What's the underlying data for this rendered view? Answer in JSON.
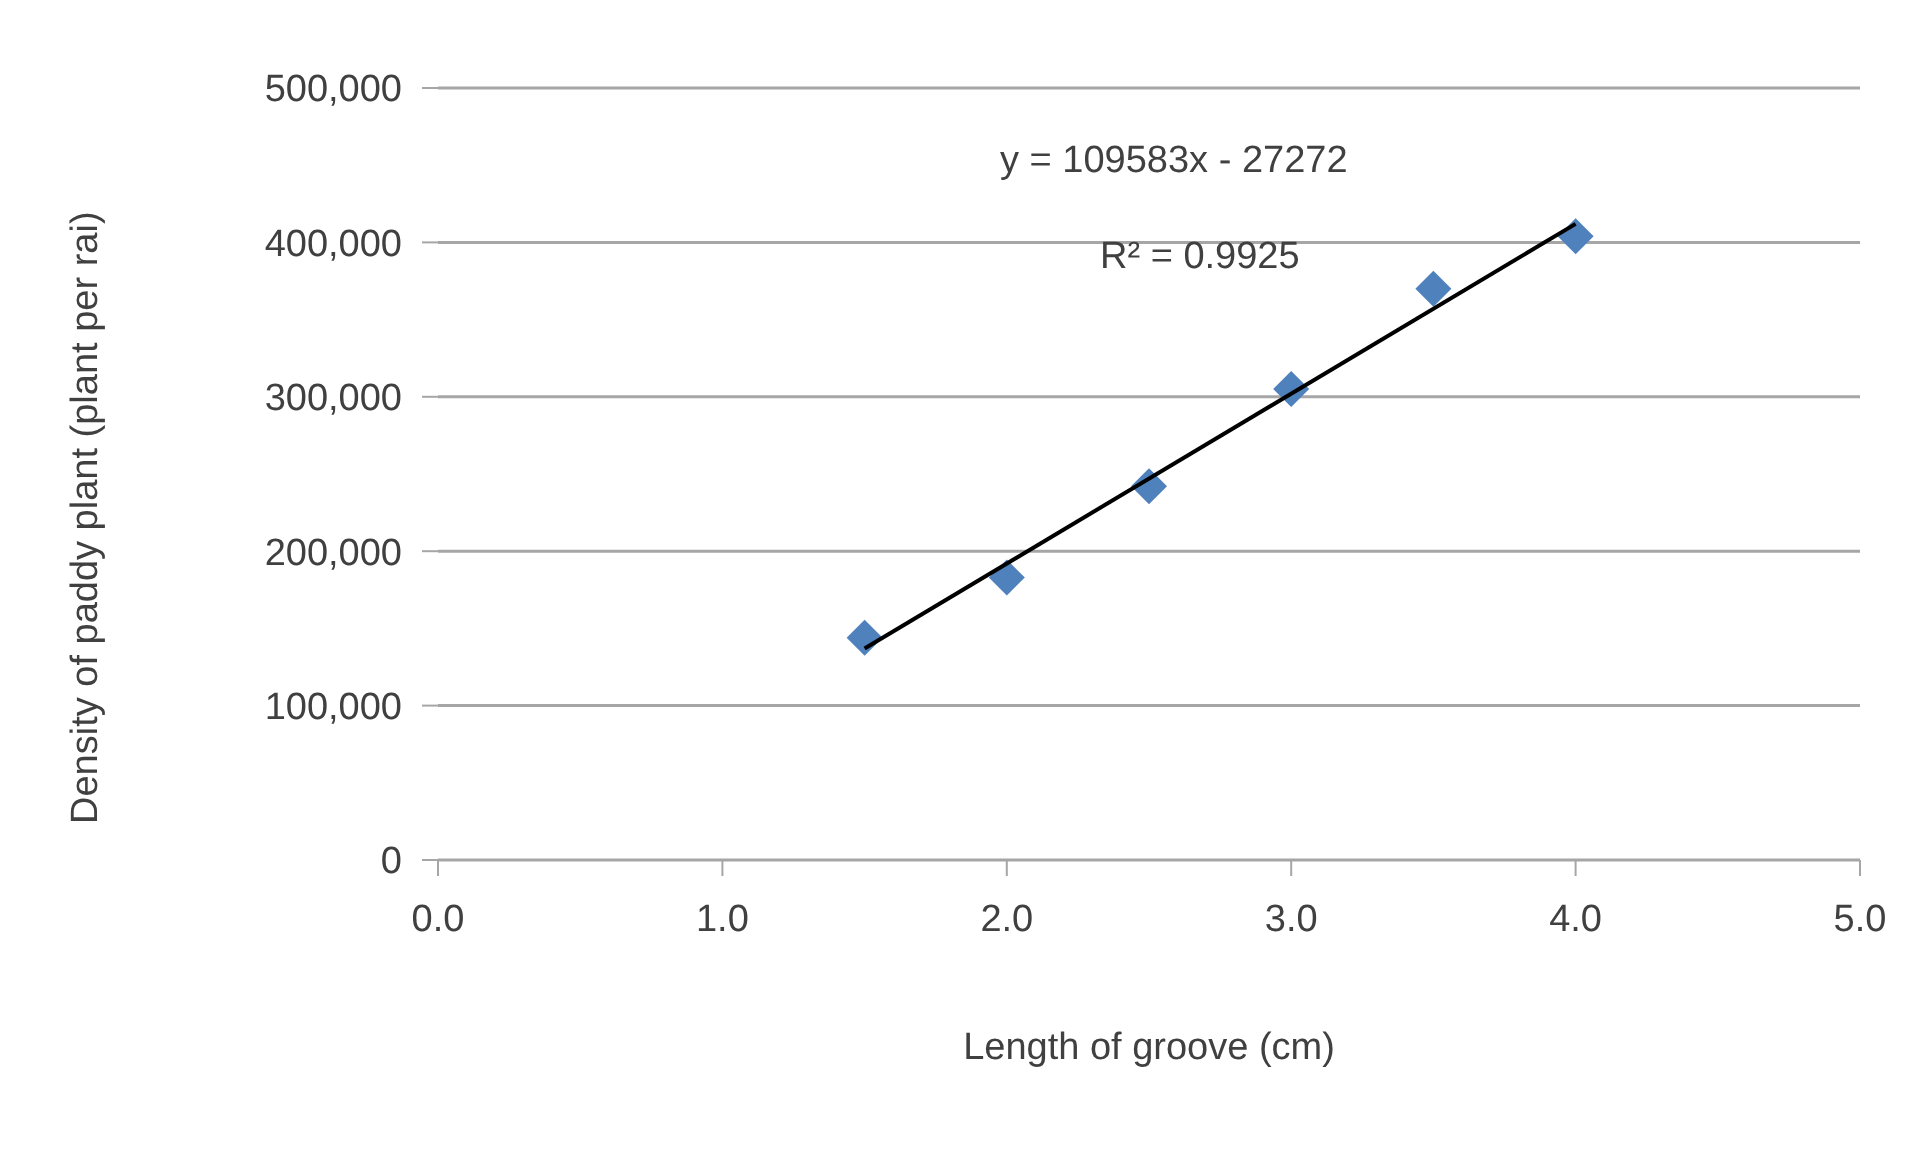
{
  "chart_data": {
    "type": "scatter",
    "xlabel": "Length of groove (cm)",
    "ylabel": "Density of paddy plant (plant per rai)",
    "series": [
      {
        "type": "scatter",
        "color": "#4f81bd",
        "x": [
          1.5,
          2.0,
          2.5,
          3.0,
          3.5,
          4.0
        ],
        "values": [
          144000,
          183000,
          242000,
          305000,
          370000,
          404000
        ],
        "marker": "diamond"
      },
      {
        "type": "line",
        "color": "#000000",
        "x": [
          1.5,
          4.0
        ],
        "values": [
          137000,
          412000
        ],
        "marker": "none",
        "line_style": "solid"
      }
    ],
    "xlim": [
      0,
      5
    ],
    "xticks": [
      {
        "value": 0,
        "label": "0.0"
      },
      {
        "value": 1,
        "label": "1.0"
      },
      {
        "value": 2,
        "label": "2.0"
      },
      {
        "value": 3,
        "label": "3.0"
      },
      {
        "value": 4,
        "label": "4.0"
      },
      {
        "value": 5,
        "label": "5.0"
      }
    ],
    "ylim": [
      0,
      500000
    ],
    "yticks": [
      {
        "value": 0,
        "label": "0"
      },
      {
        "value": 100000,
        "label": "100,000"
      },
      {
        "value": 200000,
        "label": "200,000"
      },
      {
        "value": 300000,
        "label": "300,000"
      },
      {
        "value": 400000,
        "label": "400,000"
      },
      {
        "value": 500000,
        "label": "500,000"
      }
    ],
    "grid": "y",
    "legend": false,
    "annotations": [
      "y = 109583x - 27272",
      "R² = 0.9925"
    ]
  }
}
